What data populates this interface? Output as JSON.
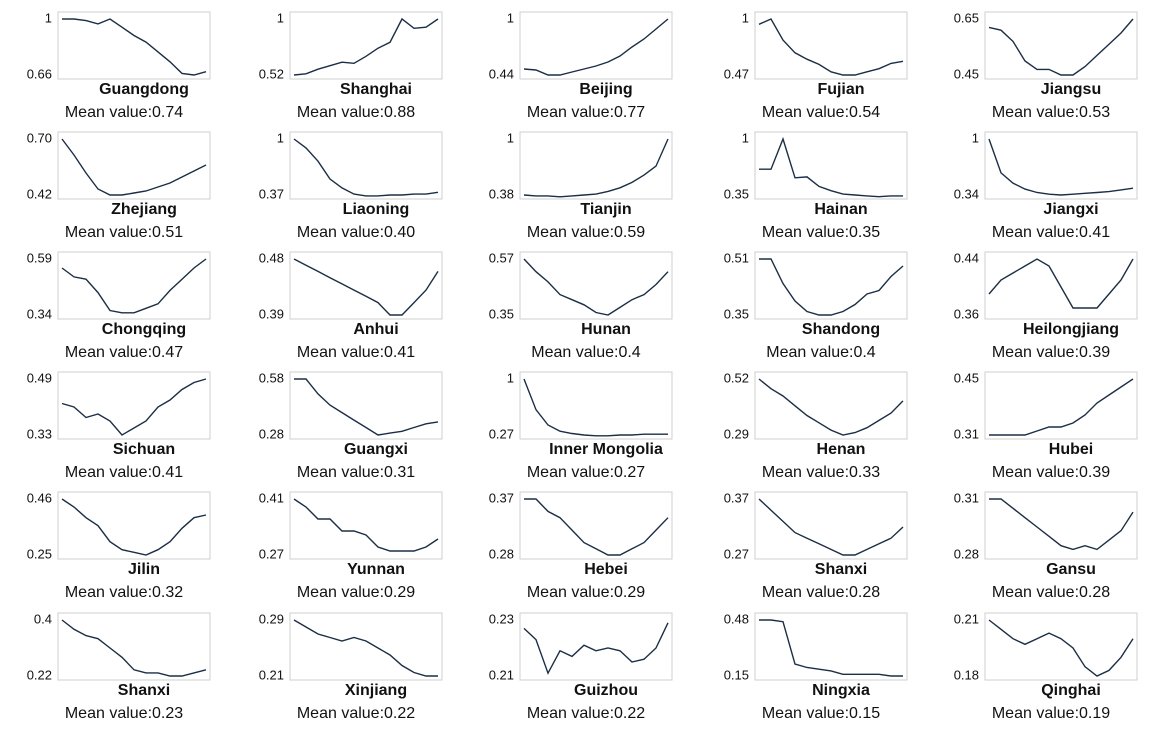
{
  "chart_data": [
    {
      "type": "line",
      "title": "Guangdong",
      "subtitle": "Mean value:0.74",
      "color": "#1b2e45",
      "ylim": [
        0.66,
        1
      ],
      "yticks": [
        0.66,
        1
      ],
      "values": [
        1,
        1,
        0.99,
        0.97,
        1,
        0.95,
        0.9,
        0.86,
        0.8,
        0.74,
        0.67,
        0.66,
        0.68
      ]
    },
    {
      "type": "line",
      "title": "Shanghai",
      "subtitle": "Mean value:0.88",
      "color": "#1b2e45",
      "ylim": [
        0.52,
        1
      ],
      "yticks": [
        0.52,
        1
      ],
      "values": [
        0.52,
        0.53,
        0.57,
        0.6,
        0.63,
        0.62,
        0.68,
        0.75,
        0.8,
        1,
        0.92,
        0.93,
        1
      ]
    },
    {
      "type": "line",
      "title": "Beijing",
      "subtitle": "Mean value:0.77",
      "color": "#1b2e45",
      "ylim": [
        0.44,
        1
      ],
      "yticks": [
        0.44,
        1
      ],
      "values": [
        0.5,
        0.49,
        0.44,
        0.44,
        0.47,
        0.5,
        0.53,
        0.57,
        0.63,
        0.72,
        0.8,
        0.9,
        1
      ]
    },
    {
      "type": "line",
      "title": "Fujian",
      "subtitle": "Mean value:0.54",
      "color": "#1b2e45",
      "ylim": [
        0.47,
        1
      ],
      "yticks": [
        0.47,
        1
      ],
      "values": [
        0.95,
        1,
        0.8,
        0.68,
        0.62,
        0.57,
        0.5,
        0.47,
        0.47,
        0.5,
        0.53,
        0.58,
        0.6
      ]
    },
    {
      "type": "line",
      "title": "Jiangsu",
      "subtitle": "Mean value:0.53",
      "color": "#1b2e45",
      "ylim": [
        0.45,
        0.65
      ],
      "yticks": [
        0.45,
        0.65
      ],
      "values": [
        0.62,
        0.61,
        0.57,
        0.5,
        0.47,
        0.47,
        0.45,
        0.45,
        0.48,
        0.52,
        0.56,
        0.6,
        0.65
      ]
    },
    {
      "type": "line",
      "title": "Zhejiang",
      "subtitle": "Mean value:0.51",
      "color": "#1b2e45",
      "ylim": [
        0.42,
        0.7
      ],
      "yticks": [
        0.42,
        {
          "value": 0.7,
          "label": "0.70"
        }
      ],
      "values": [
        0.7,
        0.62,
        0.53,
        0.45,
        0.42,
        0.42,
        0.43,
        0.44,
        0.46,
        0.48,
        0.51,
        0.54,
        0.57
      ]
    },
    {
      "type": "line",
      "title": "Liaoning",
      "subtitle": "Mean value:0.40",
      "color": "#1b2e45",
      "ylim": [
        0.37,
        1
      ],
      "yticks": [
        0.37,
        1
      ],
      "values": [
        1,
        0.9,
        0.75,
        0.55,
        0.45,
        0.38,
        0.36,
        0.36,
        0.37,
        0.37,
        0.38,
        0.38,
        0.4
      ]
    },
    {
      "type": "line",
      "title": "Tianjin",
      "subtitle": "Mean value:0.59",
      "color": "#1b2e45",
      "ylim": [
        0.38,
        1
      ],
      "yticks": [
        0.38,
        1
      ],
      "values": [
        0.38,
        0.37,
        0.37,
        0.36,
        0.37,
        0.38,
        0.39,
        0.42,
        0.46,
        0.52,
        0.6,
        0.7,
        1
      ]
    },
    {
      "type": "line",
      "title": "Hainan",
      "subtitle": "Mean value:0.35",
      "color": "#1b2e45",
      "ylim": [
        0.35,
        1
      ],
      "yticks": [
        0.35,
        1
      ],
      "values": [
        0.65,
        0.65,
        1,
        0.55,
        0.56,
        0.45,
        0.4,
        0.36,
        0.35,
        0.34,
        0.33,
        0.34,
        0.34
      ]
    },
    {
      "type": "line",
      "title": "Jiangxi",
      "subtitle": "Mean value:0.41",
      "color": "#1b2e45",
      "ylim": [
        0.34,
        1
      ],
      "yticks": [
        0.34,
        1
      ],
      "values": [
        1,
        0.6,
        0.48,
        0.41,
        0.37,
        0.35,
        0.34,
        0.35,
        0.36,
        0.37,
        0.38,
        0.4,
        0.42
      ]
    },
    {
      "type": "line",
      "title": "Chongqing",
      "subtitle": "Mean value:0.47",
      "color": "#1b2e45",
      "ylim": [
        0.34,
        0.59
      ],
      "yticks": [
        0.34,
        0.59
      ],
      "values": [
        0.55,
        0.51,
        0.5,
        0.44,
        0.36,
        0.35,
        0.35,
        0.37,
        0.39,
        0.45,
        0.5,
        0.55,
        0.59
      ]
    },
    {
      "type": "line",
      "title": "Anhui",
      "subtitle": "Mean value:0.41",
      "color": "#1b2e45",
      "ylim": [
        0.39,
        0.48
      ],
      "yticks": [
        0.39,
        0.48
      ],
      "values": [
        0.48,
        0.47,
        0.46,
        0.45,
        0.44,
        0.43,
        0.42,
        0.41,
        0.39,
        0.39,
        0.41,
        0.43,
        0.46
      ]
    },
    {
      "type": "line",
      "title": "Hunan",
      "subtitle": "Mean value:0.4",
      "color": "#1b2e45",
      "ylim": [
        0.35,
        0.57
      ],
      "yticks": [
        0.35,
        0.57
      ],
      "values": [
        0.57,
        0.52,
        0.48,
        0.43,
        0.41,
        0.39,
        0.36,
        0.35,
        0.38,
        0.41,
        0.43,
        0.47,
        0.52
      ]
    },
    {
      "type": "line",
      "title": "Shandong",
      "subtitle": "Mean value:0.4",
      "color": "#1b2e45",
      "ylim": [
        0.35,
        0.51
      ],
      "yticks": [
        0.35,
        0.51
      ],
      "values": [
        0.51,
        0.51,
        0.44,
        0.39,
        0.36,
        0.35,
        0.35,
        0.36,
        0.38,
        0.41,
        0.42,
        0.46,
        0.49
      ]
    },
    {
      "type": "line",
      "title": "Heilongjiang",
      "subtitle": "Mean value:0.39",
      "color": "#1b2e45",
      "ylim": [
        0.36,
        0.44
      ],
      "yticks": [
        0.36,
        0.44
      ],
      "values": [
        0.39,
        0.41,
        0.42,
        0.43,
        0.44,
        0.43,
        0.4,
        0.37,
        0.37,
        0.37,
        0.39,
        0.41,
        0.44
      ]
    },
    {
      "type": "line",
      "title": "Sichuan",
      "subtitle": "Mean value:0.41",
      "color": "#1b2e45",
      "ylim": [
        0.33,
        0.49
      ],
      "yticks": [
        0.33,
        0.49
      ],
      "values": [
        0.42,
        0.41,
        0.38,
        0.39,
        0.37,
        0.33,
        0.35,
        0.37,
        0.41,
        0.43,
        0.46,
        0.48,
        0.49
      ]
    },
    {
      "type": "line",
      "title": "Guangxi",
      "subtitle": "Mean value:0.31",
      "color": "#1b2e45",
      "ylim": [
        0.28,
        0.58
      ],
      "yticks": [
        0.28,
        0.58
      ],
      "values": [
        0.58,
        0.58,
        0.5,
        0.44,
        0.4,
        0.36,
        0.32,
        0.28,
        0.29,
        0.3,
        0.32,
        0.34,
        0.35
      ]
    },
    {
      "type": "line",
      "title": "Inner Mongolia",
      "subtitle": "Mean value:0.27",
      "color": "#1b2e45",
      "ylim": [
        0.27,
        1
      ],
      "yticks": [
        0.27,
        1
      ],
      "values": [
        1,
        0.6,
        0.4,
        0.32,
        0.29,
        0.27,
        0.26,
        0.26,
        0.27,
        0.27,
        0.28,
        0.28,
        0.28
      ]
    },
    {
      "type": "line",
      "title": "Henan",
      "subtitle": "Mean value:0.33",
      "color": "#1b2e45",
      "ylim": [
        0.29,
        0.52
      ],
      "yticks": [
        0.29,
        0.52
      ],
      "values": [
        0.52,
        0.48,
        0.45,
        0.41,
        0.37,
        0.34,
        0.31,
        0.29,
        0.3,
        0.32,
        0.35,
        0.38,
        0.43
      ]
    },
    {
      "type": "line",
      "title": "Hubei",
      "subtitle": "Mean value:0.39",
      "color": "#1b2e45",
      "ylim": [
        0.31,
        0.45
      ],
      "yticks": [
        0.31,
        0.45
      ],
      "values": [
        0.31,
        0.31,
        0.31,
        0.31,
        0.32,
        0.33,
        0.33,
        0.34,
        0.36,
        0.39,
        0.41,
        0.43,
        0.45
      ]
    },
    {
      "type": "line",
      "title": "Jilin",
      "subtitle": "Mean value:0.32",
      "color": "#1b2e45",
      "ylim": [
        0.25,
        0.46
      ],
      "yticks": [
        0.25,
        0.46
      ],
      "values": [
        0.46,
        0.43,
        0.39,
        0.36,
        0.3,
        0.27,
        0.26,
        0.25,
        0.27,
        0.3,
        0.35,
        0.39,
        0.4
      ]
    },
    {
      "type": "line",
      "title": "Yunnan",
      "subtitle": "Mean value:0.29",
      "color": "#1b2e45",
      "ylim": [
        0.27,
        0.41
      ],
      "yticks": [
        0.27,
        0.41
      ],
      "values": [
        0.41,
        0.39,
        0.36,
        0.36,
        0.33,
        0.33,
        0.32,
        0.29,
        0.28,
        0.28,
        0.28,
        0.29,
        0.31
      ]
    },
    {
      "type": "line",
      "title": "Hebei",
      "subtitle": "Mean value:0.29",
      "color": "#1b2e45",
      "ylim": [
        0.28,
        0.37
      ],
      "yticks": [
        0.28,
        0.37
      ],
      "values": [
        0.37,
        0.37,
        0.35,
        0.34,
        0.32,
        0.3,
        0.29,
        0.28,
        0.28,
        0.29,
        0.3,
        0.32,
        0.34
      ]
    },
    {
      "type": "line",
      "title": "Shanxi",
      "subtitle": "Mean value:0.28",
      "color": "#1b2e45",
      "ylim": [
        0.27,
        0.37
      ],
      "yticks": [
        0.27,
        0.37
      ],
      "values": [
        0.37,
        0.35,
        0.33,
        0.31,
        0.3,
        0.29,
        0.28,
        0.27,
        0.27,
        0.28,
        0.29,
        0.3,
        0.32
      ]
    },
    {
      "type": "line",
      "title": "Gansu",
      "subtitle": "Mean value:0.28",
      "color": "#1b2e45",
      "ylim": [
        0.28,
        0.31
      ],
      "yticks": [
        0.28,
        0.31
      ],
      "values": [
        0.31,
        0.31,
        0.305,
        0.3,
        0.295,
        0.29,
        0.285,
        0.283,
        0.285,
        0.283,
        0.288,
        0.293,
        0.303
      ]
    },
    {
      "type": "line",
      "title": "Shanxi",
      "subtitle": "Mean value:0.23",
      "color": "#1b2e45",
      "ylim": [
        0.22,
        0.4
      ],
      "yticks": [
        0.22,
        0.4
      ],
      "values": [
        0.4,
        0.37,
        0.35,
        0.34,
        0.31,
        0.28,
        0.24,
        0.23,
        0.23,
        0.22,
        0.22,
        0.23,
        0.24
      ]
    },
    {
      "type": "line",
      "title": "Xinjiang",
      "subtitle": "Mean value:0.22",
      "color": "#1b2e45",
      "ylim": [
        0.21,
        0.29
      ],
      "yticks": [
        0.21,
        0.29
      ],
      "values": [
        0.29,
        0.28,
        0.27,
        0.265,
        0.26,
        0.265,
        0.26,
        0.25,
        0.24,
        0.225,
        0.215,
        0.21,
        0.21
      ]
    },
    {
      "type": "line",
      "title": "Guizhou",
      "subtitle": "Mean value:0.22",
      "color": "#1b2e45",
      "ylim": [
        0.21,
        0.23
      ],
      "yticks": [
        0.21,
        0.23
      ],
      "values": [
        0.227,
        0.223,
        0.211,
        0.219,
        0.217,
        0.221,
        0.219,
        0.22,
        0.219,
        0.215,
        0.216,
        0.22,
        0.229
      ]
    },
    {
      "type": "line",
      "title": "Ningxia",
      "subtitle": "Mean value:0.15",
      "color": "#1b2e45",
      "ylim": [
        0.15,
        0.48
      ],
      "yticks": [
        0.15,
        0.48
      ],
      "values": [
        0.48,
        0.48,
        0.47,
        0.22,
        0.2,
        0.19,
        0.18,
        0.16,
        0.16,
        0.16,
        0.16,
        0.15,
        0.15
      ]
    },
    {
      "type": "line",
      "title": "Qinghai",
      "subtitle": "Mean value:0.19",
      "color": "#1b2e45",
      "ylim": [
        0.18,
        0.21
      ],
      "yticks": [
        0.18,
        0.21
      ],
      "values": [
        0.21,
        0.205,
        0.2,
        0.197,
        0.2,
        0.203,
        0.2,
        0.195,
        0.185,
        0.18,
        0.183,
        0.19,
        0.2
      ]
    }
  ]
}
